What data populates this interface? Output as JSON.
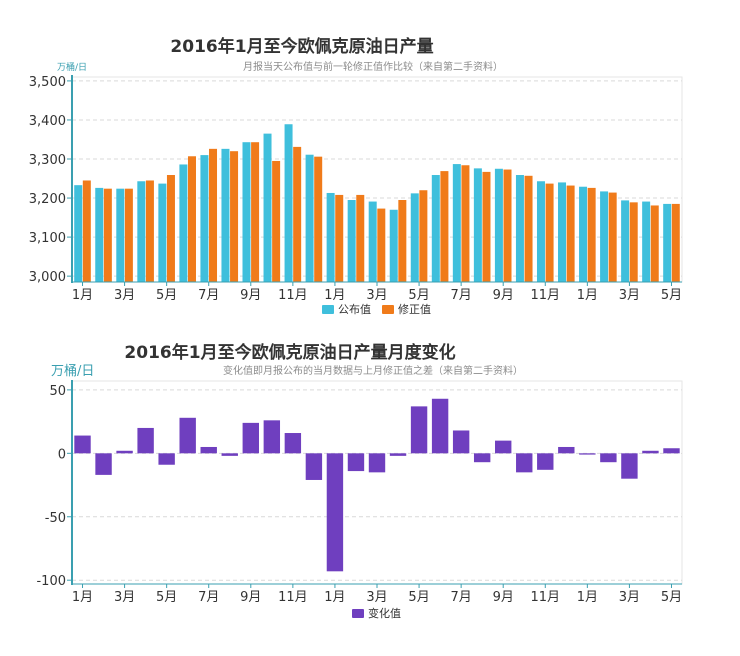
{
  "colors": {
    "published": "#3fbfdc",
    "revised": "#f07b1a",
    "change": "#6f3fbf",
    "axis": "#3a9fb0",
    "grid": "#d9d9d9",
    "text": "#333333",
    "subtitle": "#8c8c8c"
  },
  "chart_data": [
    {
      "type": "bar",
      "title": "2016年1月至今欧佩克原油日产量",
      "subtitle": "月报当天公布值与前一轮修正值作比较（来自第二手资料）",
      "unit": "万桶/日",
      "ylim": [
        2985,
        3510
      ],
      "yticks": [
        3000,
        3100,
        3200,
        3300,
        3400,
        3500
      ],
      "ytick_labels": [
        "3,000",
        "3,100",
        "3,200",
        "3,300",
        "3,400",
        "3,500"
      ],
      "xtick_labels": [
        "1月",
        "3月",
        "5月",
        "7月",
        "9月",
        "11月",
        "1月",
        "3月",
        "5月",
        "7月",
        "9月",
        "11月",
        "1月",
        "3月",
        "5月"
      ],
      "categories": [
        "2016-01",
        "2016-02",
        "2016-03",
        "2016-04",
        "2016-05",
        "2016-06",
        "2016-07",
        "2016-08",
        "2016-09",
        "2016-10",
        "2016-11",
        "2016-12",
        "2017-01",
        "2017-02",
        "2017-03",
        "2017-04",
        "2017-05",
        "2017-06",
        "2017-07",
        "2017-08",
        "2017-09",
        "2017-10",
        "2017-11",
        "2017-12",
        "2018-01",
        "2018-02",
        "2018-03",
        "2018-04",
        "2018-05"
      ],
      "series": [
        {
          "name": "公布值",
          "values": [
            3233,
            3226,
            3224,
            3243,
            3237,
            3286,
            3310,
            3326,
            3343,
            3365,
            3389,
            3311,
            3213,
            3195,
            3191,
            3170,
            3212,
            3259,
            3287,
            3276,
            3275,
            3259,
            3243,
            3240,
            3229,
            3217,
            3194,
            3191,
            3185
          ]
        },
        {
          "name": "修正值",
          "values": [
            3245,
            3224,
            3224,
            3245,
            3259,
            3307,
            3326,
            3320,
            3343,
            3295,
            3331,
            3306,
            3208,
            3208,
            3173,
            3195,
            3220,
            3269,
            3284,
            3267,
            3273,
            3257,
            3237,
            3232,
            3226,
            3214,
            3189,
            3181,
            3185
          ]
        }
      ],
      "legend": [
        "公布值",
        "修正值"
      ],
      "legend_position": "bottom-center"
    },
    {
      "type": "bar",
      "title": "2016年1月至今欧佩克原油日产量月度变化",
      "subtitle": "变化值即月报公布的当月数据与上月修正值之差（来自第二手资料）",
      "unit": "万桶/日",
      "ylim": [
        -103,
        57
      ],
      "yticks": [
        50,
        0,
        -50,
        -100
      ],
      "ytick_labels": [
        "50",
        "0",
        "-50",
        "-100"
      ],
      "xtick_labels": [
        "1月",
        "3月",
        "5月",
        "7月",
        "9月",
        "11月",
        "1月",
        "3月",
        "5月",
        "7月",
        "9月",
        "11月",
        "1月",
        "3月",
        "5月"
      ],
      "categories": [
        "2016-01",
        "2016-02",
        "2016-03",
        "2016-04",
        "2016-05",
        "2016-06",
        "2016-07",
        "2016-08",
        "2016-09",
        "2016-10",
        "2016-11",
        "2016-12",
        "2017-01",
        "2017-02",
        "2017-03",
        "2017-04",
        "2017-05",
        "2017-06",
        "2017-07",
        "2017-08",
        "2017-09",
        "2017-10",
        "2017-11",
        "2017-12",
        "2018-01",
        "2018-02",
        "2018-03",
        "2018-04",
        "2018-05"
      ],
      "series": [
        {
          "name": "变化值",
          "values": [
            14,
            -17,
            2,
            20,
            -9,
            28,
            5,
            -2,
            24,
            26,
            16,
            -21,
            -93,
            -14,
            -15,
            -2,
            37,
            43,
            18,
            -7,
            10,
            -15,
            -13,
            5,
            -1,
            -7,
            -20,
            2,
            4
          ]
        }
      ],
      "legend": [
        "变化值"
      ],
      "legend_position": "bottom-center"
    }
  ]
}
